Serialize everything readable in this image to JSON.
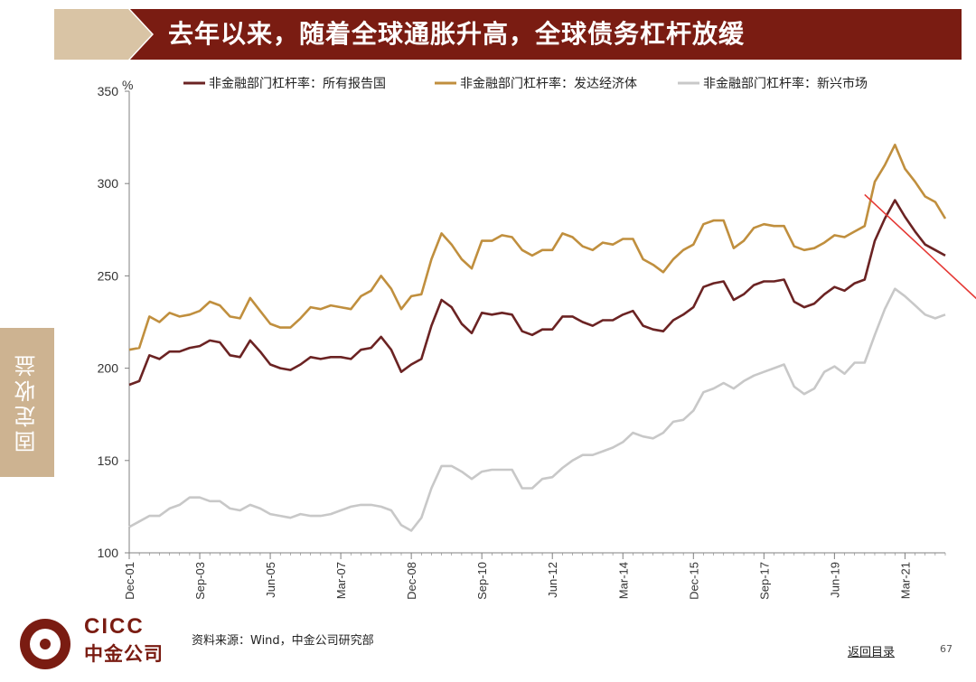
{
  "header": {
    "title": "去年以来，随着全球通胀升高，全球债务杠杆放缓",
    "accent_color": "#7a1c12",
    "chevron_color": "#d9c4a5"
  },
  "side_tab": {
    "label": "固定收益",
    "color": "#cdb391"
  },
  "chart_data": {
    "type": "line",
    "title": "",
    "xlabel": "",
    "ylabel": "%",
    "ylim": [
      100,
      350
    ],
    "yticks": [
      100,
      150,
      200,
      250,
      300,
      350
    ],
    "x_start": "Dec-01",
    "x_step_quarters": 1,
    "xtick_labels": [
      "Dec-01",
      "Sep-03",
      "Jun-05",
      "Mar-07",
      "Dec-08",
      "Sep-10",
      "Jun-12",
      "Mar-14",
      "Dec-15",
      "Sep-17",
      "Jun-19",
      "Mar-21"
    ],
    "legend_position": "top",
    "series": [
      {
        "name": "非金融部门杠杆率：所有报告国",
        "color": "#6b2323",
        "values": [
          191,
          193,
          207,
          205,
          209,
          209,
          211,
          212,
          215,
          214,
          207,
          206,
          215,
          209,
          202,
          200,
          199,
          202,
          206,
          205,
          206,
          206,
          205,
          210,
          211,
          217,
          210,
          198,
          202,
          205,
          223,
          237,
          233,
          224,
          219,
          230,
          229,
          230,
          229,
          220,
          218,
          221,
          221,
          228,
          228,
          225,
          223,
          226,
          226,
          229,
          231,
          223,
          221,
          220,
          226,
          229,
          233,
          244,
          246,
          247,
          237,
          240,
          245,
          247,
          247,
          248,
          236,
          233,
          235,
          240,
          244,
          242,
          246,
          248,
          269,
          281,
          291,
          282,
          274,
          267,
          264,
          261
        ]
      },
      {
        "name": "非金融部门杠杆率：发达经济体",
        "color": "#c08f3e",
        "values": [
          210,
          211,
          228,
          225,
          230,
          228,
          229,
          231,
          236,
          234,
          228,
          227,
          238,
          231,
          224,
          222,
          222,
          227,
          233,
          232,
          234,
          233,
          232,
          239,
          242,
          250,
          243,
          232,
          239,
          240,
          259,
          273,
          267,
          259,
          254,
          269,
          269,
          272,
          271,
          264,
          261,
          264,
          264,
          273,
          271,
          266,
          264,
          268,
          267,
          270,
          270,
          259,
          256,
          252,
          259,
          264,
          267,
          278,
          280,
          280,
          265,
          269,
          276,
          278,
          277,
          277,
          266,
          264,
          265,
          268,
          272,
          271,
          274,
          277,
          301,
          310,
          321,
          308,
          301,
          293,
          290,
          281
        ]
      },
      {
        "name": "非金融部门杠杆率：新兴市场",
        "color": "#c8c8c8",
        "values": [
          114,
          117,
          120,
          120,
          124,
          126,
          130,
          130,
          128,
          128,
          124,
          123,
          126,
          124,
          121,
          120,
          119,
          121,
          120,
          120,
          121,
          123,
          125,
          126,
          126,
          125,
          123,
          115,
          112,
          119,
          135,
          147,
          147,
          144,
          140,
          144,
          145,
          145,
          145,
          135,
          135,
          140,
          141,
          146,
          150,
          153,
          153,
          155,
          157,
          160,
          165,
          163,
          162,
          165,
          171,
          172,
          177,
          187,
          189,
          192,
          189,
          193,
          196,
          198,
          200,
          202,
          190,
          186,
          189,
          198,
          201,
          197,
          203,
          203,
          218,
          232,
          243,
          239,
          234,
          229,
          227,
          229
        ]
      }
    ],
    "trend_arrow": {
      "color": "#e53935",
      "from": {
        "x_index": 74,
        "y": 294
      },
      "to": {
        "x_index": 87,
        "y": 228
      }
    }
  },
  "footer": {
    "logo_en": "CICC",
    "logo_cn": "中金公司",
    "source": "资料来源：Wind，中金公司研究部",
    "back_link": "返回目录",
    "page_number": "67"
  }
}
